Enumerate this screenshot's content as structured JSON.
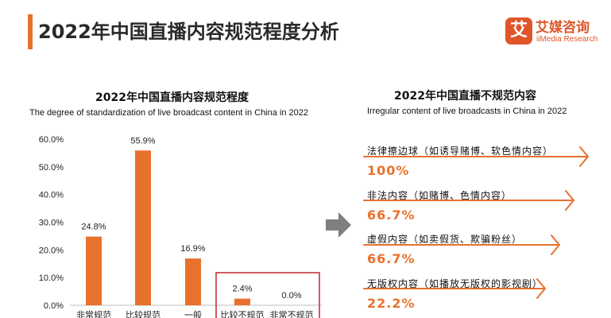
{
  "header": {
    "title": "2022年中国直播内容规范程度分析"
  },
  "logo": {
    "mark": "艾",
    "name_cn": "艾媒咨询",
    "name_en": "iiMedia Research"
  },
  "chart_data": {
    "type": "bar",
    "title": "2022年中国直播内容规范程度",
    "subtitle": "The degree of standardization of live broadcast content in China in 2022",
    "categories": [
      "非常规范",
      "比较规范",
      "一般",
      "比较不规范",
      "非常不规范"
    ],
    "values": [
      24.8,
      55.9,
      16.9,
      2.4,
      0.0
    ],
    "value_labels": [
      "24.8%",
      "55.9%",
      "16.9%",
      "2.4%",
      "0.0%"
    ],
    "y_ticks": [
      "0.0%",
      "10.0%",
      "20.0%",
      "30.0%",
      "40.0%",
      "50.0%",
      "60.0%"
    ],
    "ylim": [
      0,
      60
    ],
    "grid": false,
    "highlight_categories": [
      "比较不规范",
      "非常不规范"
    ],
    "bar_color": "#e8712c",
    "highlight_border_color": "#c0262c"
  },
  "irregular": {
    "title": "2022年中国直播不规范内容",
    "subtitle": "Irregular content of live broadcasts in China in 2022",
    "items": [
      {
        "label": "法律擦边球（如诱导赌博、软色情内容）",
        "value": "100%"
      },
      {
        "label": "非法内容（如赌博、色情内容）",
        "value": "66.7%"
      },
      {
        "label": "虚假内容（如卖假货、欺骗粉丝）",
        "value": "66.7%"
      },
      {
        "label": "无版权内容（如播放无版权的影视剧）",
        "value": "22.2%"
      }
    ]
  },
  "colors": {
    "accent": "#e8712c",
    "logo": "#e0562a",
    "arrow": "#7f7f7f"
  }
}
